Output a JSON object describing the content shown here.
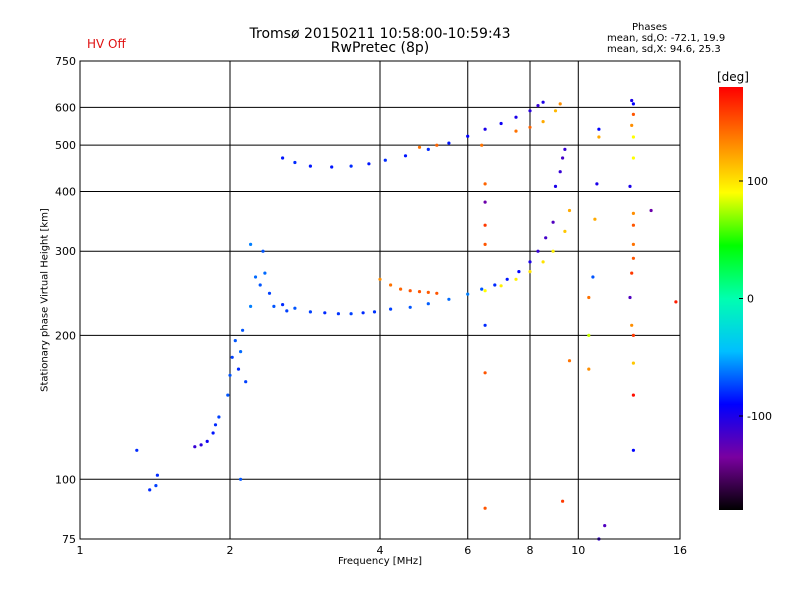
{
  "chart_data": {
    "type": "scatter",
    "title": "Tromsø 20150211 10:58:00-10:59:43",
    "subtitle": "RwPretec (8p)",
    "status": "HV Off",
    "xlabel": "Frequency [MHz]",
    "ylabel": "Stationary phase Virtual Height [km]",
    "x_scale": "log",
    "y_scale": "log",
    "xlim": [
      1,
      16
    ],
    "ylim": [
      75,
      750
    ],
    "xticks": [
      1,
      2,
      4,
      6,
      8,
      10,
      16
    ],
    "xtick_labels": [
      "1",
      "2",
      "4",
      "6",
      "8",
      "10",
      "16"
    ],
    "yticks": [
      75,
      100,
      200,
      300,
      400,
      500,
      600,
      750
    ],
    "ytick_labels": [
      "75",
      "100",
      "200",
      "300",
      "400",
      "500",
      "600",
      "750"
    ],
    "grid": true,
    "stats": {
      "heading": "Phases",
      "line1": "mean, sd,O: -72.1, 19.9",
      "line2": "mean, sd,X:  94.6, 25.3"
    },
    "colorbar": {
      "unit": "[deg]",
      "range": [
        -180,
        180
      ],
      "ticks": [
        100,
        0,
        -100
      ],
      "tick_labels": [
        "100",
        "0",
        "-100"
      ],
      "colors": [
        "#000000",
        "#7a00a0",
        "#0000ff",
        "#00bfff",
        "#00ffb0",
        "#00ff00",
        "#ffff00",
        "#ff8000",
        "#ff0000"
      ]
    },
    "points": [
      [
        1.3,
        115,
        -80
      ],
      [
        1.38,
        95,
        -80
      ],
      [
        1.42,
        97,
        -75
      ],
      [
        1.43,
        102,
        -80
      ],
      [
        1.7,
        117,
        -110
      ],
      [
        1.75,
        118,
        -105
      ],
      [
        1.8,
        120,
        -95
      ],
      [
        1.85,
        125,
        -85
      ],
      [
        1.87,
        130,
        -80
      ],
      [
        1.9,
        135,
        -75
      ],
      [
        1.98,
        150,
        -70
      ],
      [
        2.0,
        165,
        -70
      ],
      [
        2.02,
        180,
        -75
      ],
      [
        2.05,
        195,
        -70
      ],
      [
        2.08,
        170,
        -80
      ],
      [
        2.1,
        185,
        -65
      ],
      [
        2.12,
        205,
        -70
      ],
      [
        2.15,
        160,
        -75
      ],
      [
        2.1,
        100,
        -70
      ],
      [
        2.2,
        230,
        -60
      ],
      [
        2.25,
        265,
        -65
      ],
      [
        2.3,
        255,
        -70
      ],
      [
        2.35,
        270,
        -65
      ],
      [
        2.4,
        245,
        -75
      ],
      [
        2.45,
        230,
        -70
      ],
      [
        2.2,
        310,
        -60
      ],
      [
        2.33,
        300,
        -70
      ],
      [
        2.55,
        232,
        -80
      ],
      [
        2.6,
        225,
        -75
      ],
      [
        2.7,
        228,
        -70
      ],
      [
        2.9,
        224,
        -75
      ],
      [
        3.1,
        223,
        -80
      ],
      [
        3.3,
        222,
        -78
      ],
      [
        3.5,
        222,
        -75
      ],
      [
        3.7,
        223,
        -80
      ],
      [
        3.9,
        224,
        -78
      ],
      [
        4.0,
        262,
        130
      ],
      [
        4.2,
        255,
        140
      ],
      [
        4.4,
        250,
        145
      ],
      [
        4.6,
        248,
        150
      ],
      [
        4.8,
        247,
        150
      ],
      [
        5.0,
        246,
        148
      ],
      [
        5.2,
        245,
        150
      ],
      [
        4.2,
        227,
        -75
      ],
      [
        4.6,
        229,
        -70
      ],
      [
        5.0,
        233,
        -68
      ],
      [
        5.5,
        238,
        -65
      ],
      [
        6.0,
        244,
        -60
      ],
      [
        6.4,
        250,
        -70
      ],
      [
        6.8,
        255,
        -80
      ],
      [
        7.2,
        262,
        -85
      ],
      [
        7.6,
        272,
        -90
      ],
      [
        8.0,
        285,
        -100
      ],
      [
        8.3,
        300,
        -110
      ],
      [
        8.6,
        320,
        -115
      ],
      [
        8.9,
        345,
        -120
      ],
      [
        6.5,
        248,
        90
      ],
      [
        7.0,
        254,
        95
      ],
      [
        7.5,
        262,
        95
      ],
      [
        8.0,
        272,
        100
      ],
      [
        8.5,
        285,
        100
      ],
      [
        8.9,
        300,
        95
      ],
      [
        9.4,
        330,
        110
      ],
      [
        9.6,
        365,
        120
      ],
      [
        2.55,
        470,
        -85
      ],
      [
        2.7,
        460,
        -80
      ],
      [
        2.9,
        452,
        -85
      ],
      [
        3.2,
        450,
        -85
      ],
      [
        3.5,
        452,
        -80
      ],
      [
        3.8,
        457,
        -85
      ],
      [
        4.1,
        465,
        -80
      ],
      [
        4.5,
        475,
        -85
      ],
      [
        5.0,
        490,
        -80
      ],
      [
        5.5,
        505,
        -85
      ],
      [
        6.0,
        522,
        -90
      ],
      [
        6.5,
        540,
        -100
      ],
      [
        7.0,
        555,
        -95
      ],
      [
        7.5,
        572,
        -100
      ],
      [
        8.0,
        590,
        -105
      ],
      [
        8.3,
        605,
        -110
      ],
      [
        8.5,
        615,
        -100
      ],
      [
        4.8,
        495,
        140
      ],
      [
        5.2,
        500,
        145
      ],
      [
        7.5,
        535,
        140
      ],
      [
        8.0,
        545,
        145
      ],
      [
        8.5,
        560,
        120
      ],
      [
        9.0,
        590,
        115
      ],
      [
        9.2,
        610,
        130
      ],
      [
        9.0,
        410,
        -100
      ],
      [
        9.2,
        440,
        -110
      ],
      [
        9.3,
        470,
        -115
      ],
      [
        9.4,
        490,
        -110
      ],
      [
        6.4,
        500,
        140
      ],
      [
        6.5,
        415,
        145
      ],
      [
        6.5,
        380,
        -130
      ],
      [
        6.5,
        340,
        160
      ],
      [
        6.5,
        310,
        150
      ],
      [
        6.5,
        210,
        -80
      ],
      [
        6.5,
        167,
        150
      ],
      [
        6.5,
        87,
        150
      ],
      [
        9.3,
        90,
        160
      ],
      [
        9.6,
        177,
        140
      ],
      [
        11.0,
        75,
        -110
      ],
      [
        11.3,
        80,
        -120
      ],
      [
        12.8,
        620,
        -100
      ],
      [
        12.9,
        610,
        -90
      ],
      [
        12.9,
        580,
        150
      ],
      [
        12.8,
        550,
        130
      ],
      [
        12.9,
        520,
        90
      ],
      [
        12.9,
        470,
        90
      ],
      [
        12.7,
        410,
        -100
      ],
      [
        12.9,
        360,
        130
      ],
      [
        12.9,
        340,
        150
      ],
      [
        12.9,
        310,
        140
      ],
      [
        12.9,
        290,
        150
      ],
      [
        12.8,
        270,
        160
      ],
      [
        12.8,
        210,
        130
      ],
      [
        12.9,
        200,
        160
      ],
      [
        12.7,
        240,
        -120
      ],
      [
        12.9,
        175,
        110
      ],
      [
        12.9,
        150,
        175
      ],
      [
        12.9,
        115,
        -90
      ],
      [
        11.0,
        520,
        120
      ],
      [
        11.0,
        540,
        -90
      ],
      [
        10.8,
        350,
        120
      ],
      [
        10.9,
        415,
        -100
      ],
      [
        10.7,
        265,
        -70
      ],
      [
        10.5,
        170,
        130
      ],
      [
        10.5,
        200,
        80
      ],
      [
        10.5,
        240,
        140
      ],
      [
        14.0,
        365,
        -130
      ],
      [
        15.7,
        235,
        170
      ]
    ]
  }
}
